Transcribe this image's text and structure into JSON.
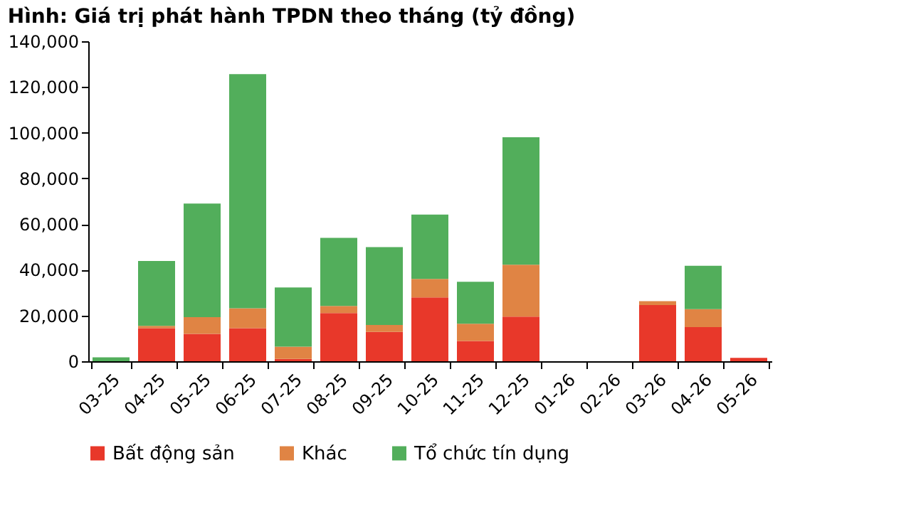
{
  "chart_data": {
    "type": "bar",
    "title": "Hình: Giá trị phát hành TPDN theo tháng (tỷ đồng)",
    "stacked": true,
    "legend": "bottom",
    "grid": false,
    "categories": [
      "03-25",
      "04-25",
      "05-25",
      "06-25",
      "07-25",
      "08-25",
      "09-25",
      "10-25",
      "11-25",
      "12-25",
      "01-26",
      "02-26",
      "03-26",
      "04-26",
      "05-26"
    ],
    "ylim": [
      0,
      140000
    ],
    "yticks": [
      0,
      {
        "value": 20000,
        "label": "20,000"
      },
      {
        "value": 40000,
        "label": "40,000"
      },
      {
        "value": 60000,
        "label": "60,000"
      },
      {
        "value": 80000,
        "label": "80,000"
      },
      {
        "value": 100000,
        "label": "100,000"
      },
      {
        "value": 120000,
        "label": "120,000"
      },
      {
        "value": 140000,
        "label": "140,000"
      }
    ],
    "series": [
      {
        "name": "Bất động sản",
        "color": "#e8382a",
        "values": [
          0,
          14500,
          12000,
          14500,
          1000,
          21100,
          12800,
          27900,
          8900,
          19500,
          0,
          0,
          24600,
          14900,
          1500
        ]
      },
      {
        "name": "Khác",
        "color": "#e08444",
        "values": [
          0,
          1000,
          7300,
          8700,
          5400,
          3100,
          3100,
          8100,
          7500,
          22700,
          0,
          0,
          1700,
          7900,
          0
        ]
      },
      {
        "name": "Tổ chức tín dụng",
        "color": "#52ae5b",
        "values": [
          1700,
          28400,
          49700,
          102400,
          25900,
          29800,
          34000,
          28200,
          18400,
          55800,
          0,
          0,
          0,
          19000,
          0
        ]
      }
    ]
  }
}
